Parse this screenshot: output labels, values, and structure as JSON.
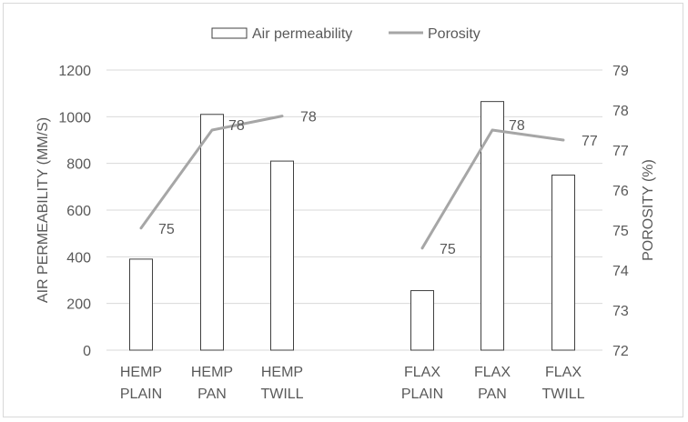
{
  "chart_data": {
    "type": "bar",
    "title": "",
    "categories": [
      [
        "HEMP",
        "PLAIN"
      ],
      [
        "HEMP",
        "PAN"
      ],
      [
        "HEMP",
        "TWILL"
      ],
      [
        "FLAX",
        "PLAIN"
      ],
      [
        "FLAX",
        "PAN"
      ],
      [
        "FLAX",
        "TWILL"
      ]
    ],
    "series": [
      {
        "name": "Air permeability",
        "type": "bar",
        "axis": "left",
        "values": [
          390,
          1010,
          810,
          255,
          1065,
          750
        ]
      },
      {
        "name": "Porosity",
        "type": "line",
        "axis": "right",
        "values": [
          75.05,
          77.5,
          77.85,
          74.55,
          77.5,
          77.25
        ],
        "labels": [
          "75",
          "78",
          "78",
          "75",
          "78",
          "77"
        ]
      }
    ],
    "ylabel": "AIR PERMEABILITY (MM/S)",
    "y2label": "POROSITY (%)",
    "ylim": [
      0,
      1200
    ],
    "yticks": [
      "0",
      "200",
      "400",
      "600",
      "800",
      "1000",
      "1200"
    ],
    "y2lim": [
      72,
      79
    ],
    "y2ticks": [
      "72",
      "73",
      "74",
      "75",
      "76",
      "77",
      "78",
      "79"
    ],
    "grid": true,
    "legend_position": "top-center",
    "colors": {
      "bar_fill": "#ffffff",
      "bar_stroke": "#404040",
      "line": "#a6a6a6",
      "grid": "#d9d9d9",
      "text": "#595959"
    }
  }
}
